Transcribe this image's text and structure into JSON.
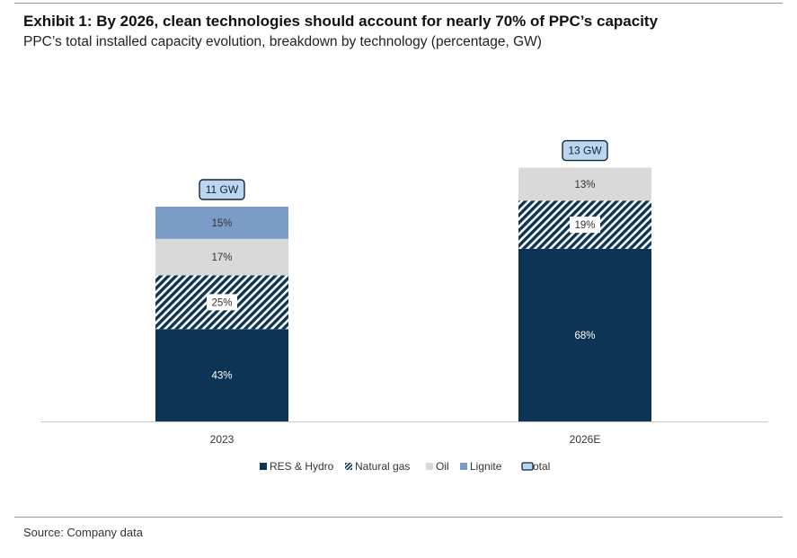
{
  "header": {
    "title": "Exhibit 1: By 2026, clean technologies should account for nearly 70% of PPC’s capacity",
    "subtitle": "PPC’s total installed capacity evolution, breakdown by technology (percentage, GW)"
  },
  "footer": {
    "source": "Source: Company data"
  },
  "chart_data": {
    "type": "bar",
    "stacked": true,
    "categories": [
      "2023",
      "2026E"
    ],
    "series": [
      {
        "name": "RES & Hydro",
        "values": [
          43,
          68
        ],
        "color": "#0d3454",
        "pattern": "solid"
      },
      {
        "name": "Natural gas",
        "values": [
          25,
          19
        ],
        "color": "#0d3454",
        "pattern": "hatched"
      },
      {
        "name": "Oil",
        "values": [
          17,
          13
        ],
        "color": "#d9d9d9",
        "pattern": "solid"
      },
      {
        "name": "Lignite",
        "values": [
          15,
          0
        ],
        "color": "#7a9cc6",
        "pattern": "solid"
      }
    ],
    "data_labels": [
      [
        "43%",
        "25%",
        "17%",
        "15%"
      ],
      [
        "68%",
        "19%",
        "13%",
        ""
      ]
    ],
    "totals": {
      "name": "Total",
      "values": [
        11,
        13
      ],
      "unit": "GW",
      "labels": [
        "11 GW",
        "13 GW"
      ],
      "color": "#bcd6ee"
    },
    "legend": {
      "position": "bottom",
      "entries": [
        "RES & Hydro",
        "Natural gas",
        "Oil",
        "Lignite",
        "otal"
      ]
    },
    "grid": false,
    "xlabel": "",
    "ylabel": ""
  }
}
